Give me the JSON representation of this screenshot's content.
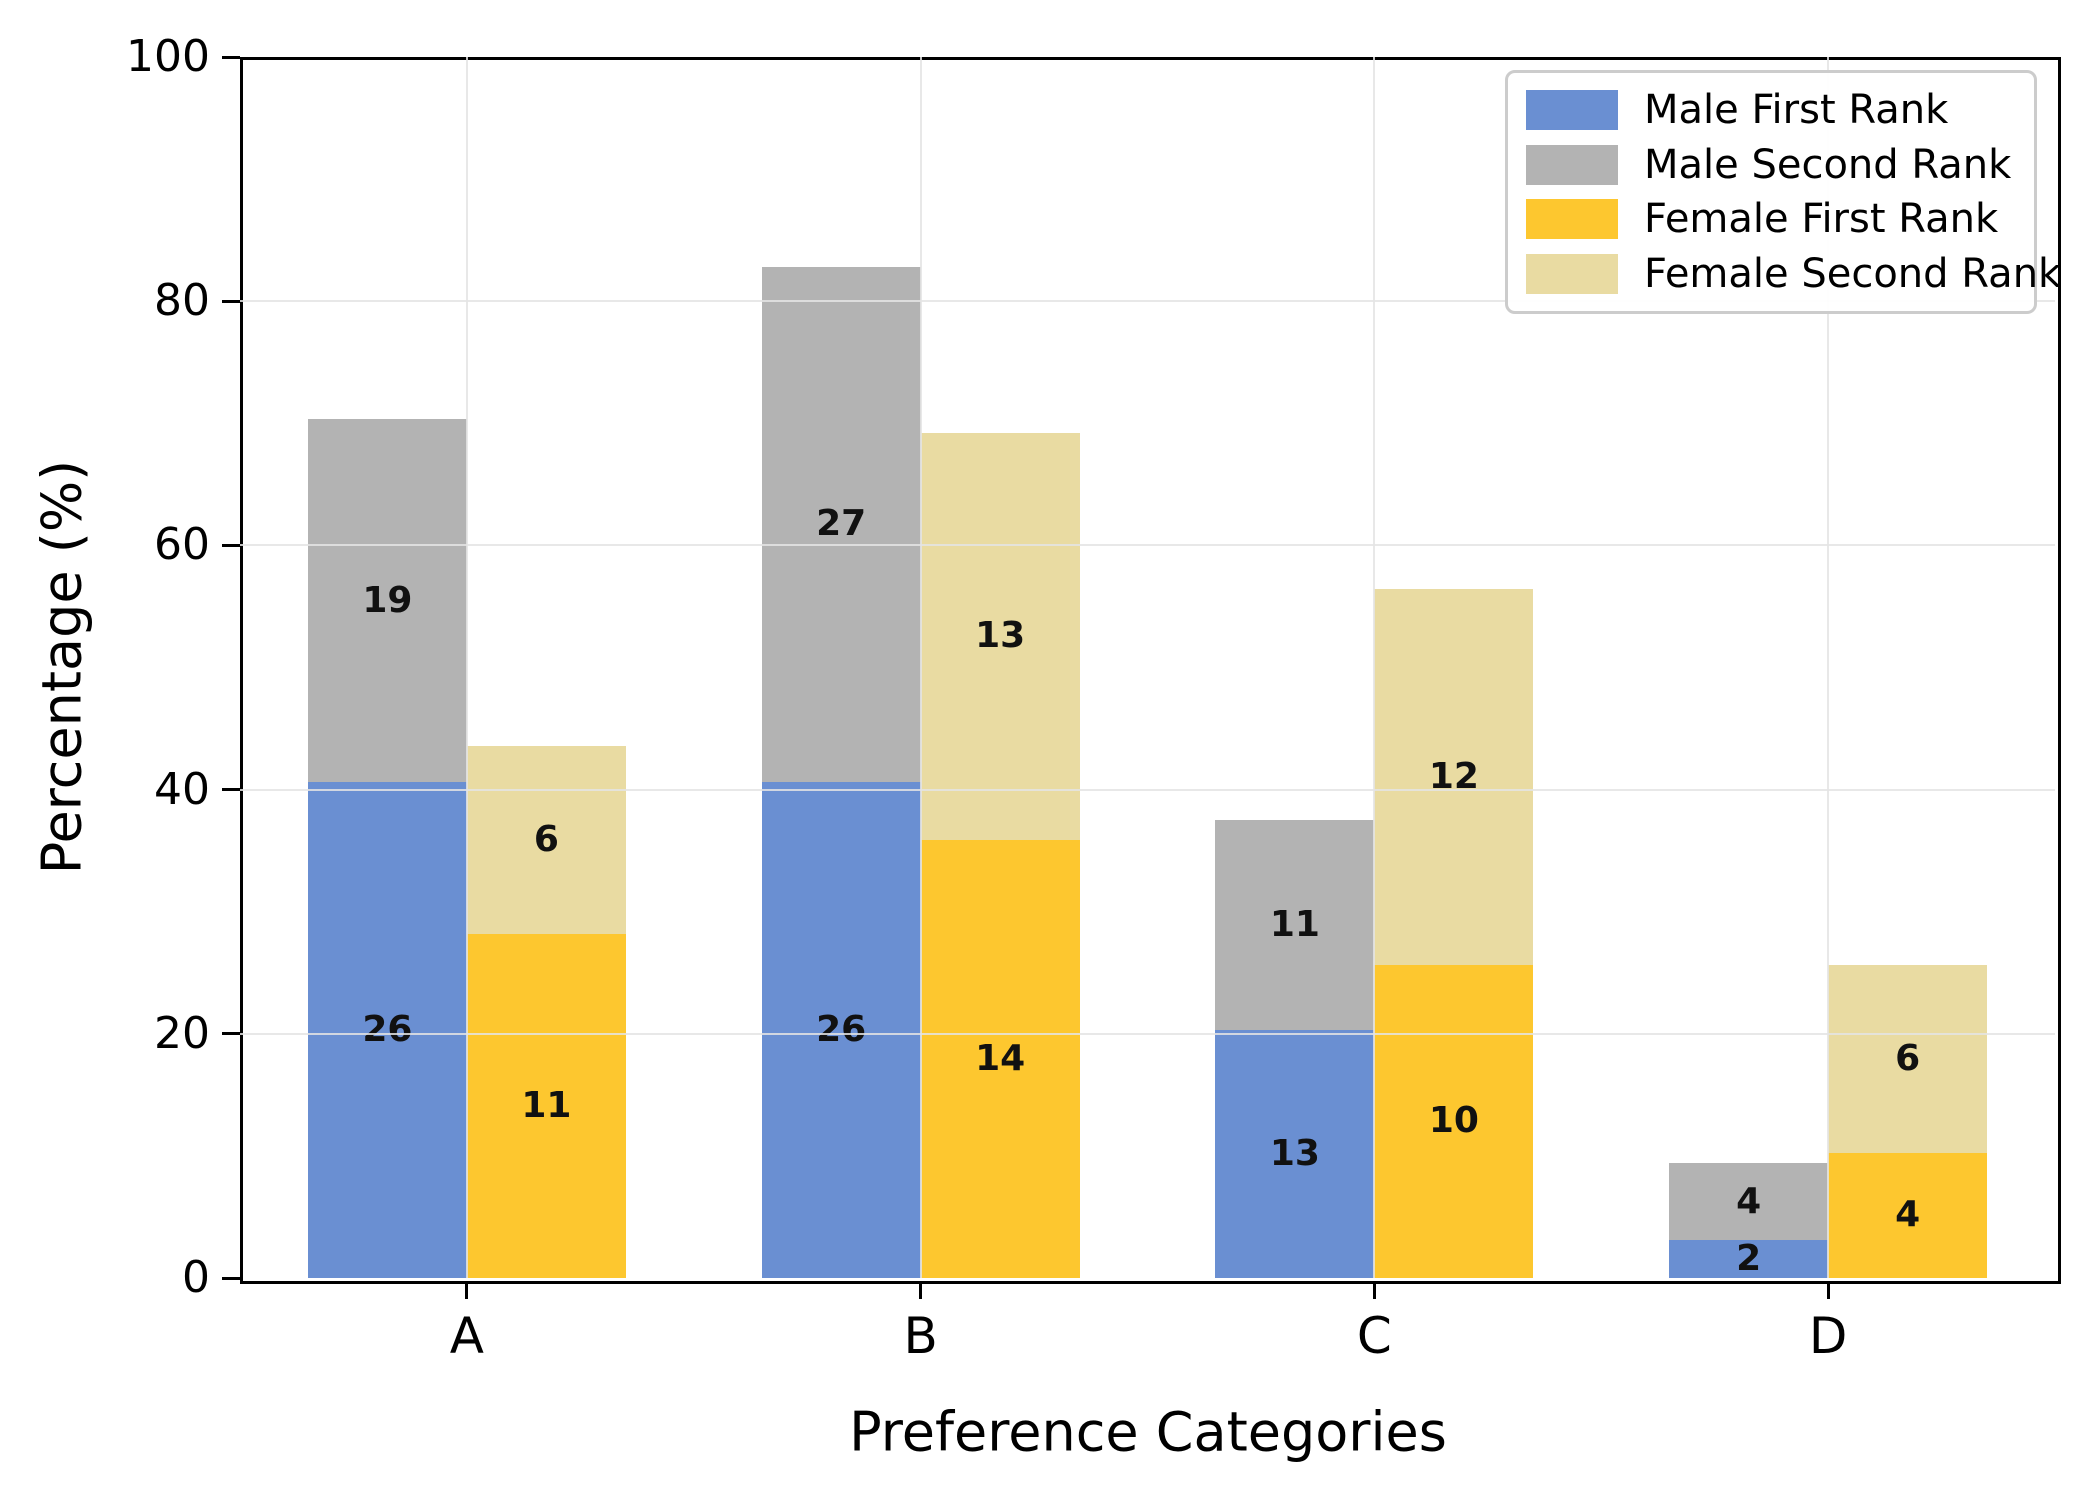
{
  "chart_data": {
    "type": "bar",
    "stacked": true,
    "grouped": true,
    "title": "",
    "xlabel": "Preference Categories",
    "ylabel": "Percentage (%)",
    "categories": [
      "A",
      "B",
      "C",
      "D"
    ],
    "ylim": [
      0,
      100
    ],
    "yticks": [
      0,
      20,
      40,
      60,
      80,
      100
    ],
    "grid": true,
    "grid_color": "#e4e4e4",
    "legend_position": "upper right inside",
    "series": [
      {
        "name": "Male First Rank",
        "group": "male",
        "color": "#6a8fd2",
        "counts": [
          26,
          26,
          13,
          2
        ],
        "pct": [
          40.63,
          40.63,
          20.31,
          3.13
        ]
      },
      {
        "name": "Male Second Rank",
        "group": "male",
        "color": "#b3b3b3",
        "counts": [
          19,
          27,
          11,
          4
        ],
        "pct": [
          29.69,
          42.19,
          17.19,
          6.25
        ]
      },
      {
        "name": "Female First Rank",
        "group": "female",
        "color": "#fdc72f",
        "counts": [
          11,
          14,
          10,
          4
        ],
        "pct": [
          28.21,
          35.9,
          25.64,
          10.26
        ]
      },
      {
        "name": "Female Second Rank",
        "group": "female",
        "color": "#e9dba2",
        "counts": [
          6,
          13,
          12,
          6
        ],
        "pct": [
          15.38,
          33.33,
          30.77,
          15.38
        ]
      }
    ],
    "value_labels": "counts shown inside each stacked segment"
  }
}
